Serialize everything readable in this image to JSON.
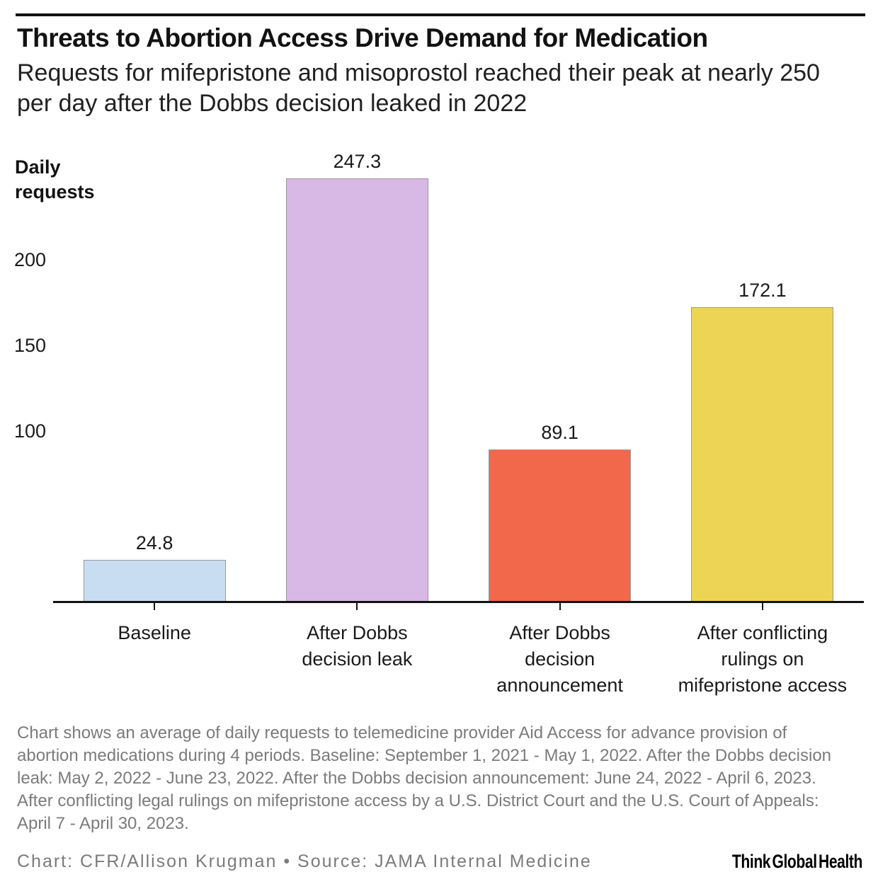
{
  "header": {
    "title": "Threats to Abortion Access Drive Demand for Medication",
    "subtitle_lines": [
      "Requests for mifepristone and misoprostol reached their peak at nearly 250",
      "per day after the Dobbs decision leaked in 2022"
    ]
  },
  "chart_data": {
    "type": "bar",
    "title": "Threats to Abortion Access Drive Demand for Medication",
    "subtitle": "Requests for mifepristone and misoprostol reached their peak at nearly 250 per day after the Dobbs decision leaked in 2022",
    "categories": [
      "Baseline",
      "After Dobbs decision leak",
      "After Dobbs decision announcement",
      "After conflicting rulings on mifepristone access"
    ],
    "category_lines": [
      [
        "Baseline"
      ],
      [
        "After Dobbs",
        "decision leak"
      ],
      [
        "After Dobbs",
        "decision",
        "announcement"
      ],
      [
        "After conflicting",
        "rulings on",
        "mifepristone access"
      ]
    ],
    "values": [
      24.8,
      247.3,
      89.1,
      172.1
    ],
    "value_labels": [
      "24.8",
      "247.3",
      "89.1",
      "172.1"
    ],
    "ylabel": "Daily requests",
    "xlabel": "",
    "yticks": [
      100,
      150,
      200
    ],
    "ylim": [
      0,
      250
    ],
    "grid": false,
    "legend": "none",
    "bar_colors": [
      "#c9ddf2",
      "#d8b8e5",
      "#f2684a",
      "#eed455"
    ],
    "bar_border_color": "#999999"
  },
  "footnote_lines": [
    "Chart shows an average of daily requests to telemedicine provider Aid Access for advance provision of",
    "abortion medications during 4 periods. Baseline: September 1, 2021 - May 1, 2022. After the Dobbs decision",
    "leak: May 2, 2022 - June 23, 2022. After the Dobbs decision announcement: June 24, 2022 - April 6, 2023.",
    "After conflicting legal rulings on mifepristone access by a U.S. District Court and the U.S. Court of Appeals:",
    "April 7 - April 30, 2023."
  ],
  "caption": {
    "credit": "Chart: CFR/Allison Krugman • Source: JAMA Internal Medicine",
    "logo": "Think Global Health"
  },
  "colors": {
    "rule": "#121212",
    "axis": "#121212",
    "text": "#1a1a1a",
    "muted_text": "#7b7b7b"
  }
}
